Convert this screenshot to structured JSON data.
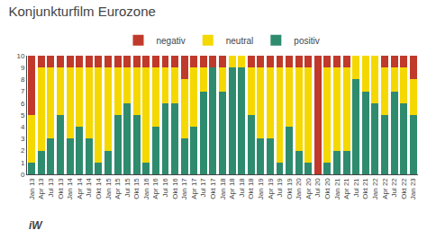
{
  "chart_data": {
    "type": "bar",
    "title": "Konjunkturfilm Eurozone",
    "stacked": true,
    "categories": [
      "Jan 13",
      "Apr 13",
      "Jul 13",
      "Okt 13",
      "Jan 14",
      "Apr 14",
      "Jul 14",
      "Okt 14",
      "Jan 15",
      "Apr 15",
      "Jul 15",
      "Okt 15",
      "Jan 16",
      "Apr 16",
      "Jul 16",
      "Okt 16",
      "Jan 17",
      "Apr 17",
      "Jul 17",
      "Okt 17",
      "Jan 18",
      "Apr 18",
      "Jul 18",
      "Okt 18",
      "Jan 19",
      "Apr 19",
      "Jul 19",
      "Okt 19",
      "Jan 20",
      "Apr 20",
      "Jul 20",
      "Okt 20",
      "Jan 21",
      "Apr 21",
      "Jul 21",
      "Okt 21",
      "Jan 22",
      "Apr 22",
      "Jul 22",
      "Okt 22",
      "Jan 23"
    ],
    "series": [
      {
        "name": "positiv",
        "color": "#2e8b6e",
        "values": [
          1,
          2,
          3,
          5,
          3,
          4,
          3,
          1,
          2,
          5,
          6,
          5,
          1,
          4,
          6,
          6,
          3,
          4,
          7,
          9,
          7,
          9,
          9,
          5,
          3,
          3,
          1,
          4,
          2,
          1,
          0,
          1,
          2,
          2,
          8,
          7,
          6,
          5,
          7,
          6,
          5
        ]
      },
      {
        "name": "neutral",
        "color": "#f5d800",
        "values": [
          4,
          7,
          6,
          4,
          6,
          5,
          6,
          8,
          7,
          4,
          3,
          4,
          8,
          5,
          3,
          3,
          5,
          5,
          2,
          0,
          2,
          1,
          1,
          4,
          6,
          6,
          8,
          5,
          7,
          8,
          0,
          8,
          7,
          7,
          2,
          3,
          4,
          4,
          2,
          3,
          3
        ]
      },
      {
        "name": "negativ",
        "color": "#c0392b",
        "values": [
          5,
          1,
          1,
          1,
          1,
          1,
          1,
          1,
          1,
          1,
          1,
          1,
          1,
          1,
          1,
          1,
          2,
          1,
          1,
          1,
          1,
          0,
          0,
          1,
          1,
          1,
          1,
          1,
          1,
          1,
          10,
          1,
          1,
          1,
          0,
          0,
          0,
          1,
          1,
          1,
          2
        ]
      }
    ],
    "ylim": [
      0,
      10
    ],
    "yticks": [
      0,
      1,
      2,
      3,
      4,
      5,
      6,
      7,
      8,
      9,
      10
    ],
    "grid": false,
    "legend": "top",
    "annotations": [
      "iW"
    ]
  }
}
